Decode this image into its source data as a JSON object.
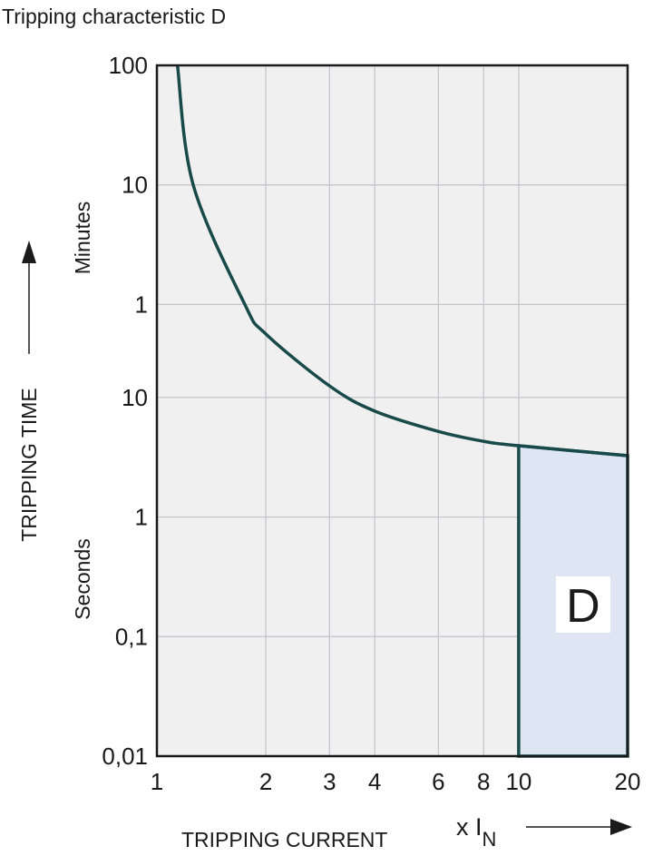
{
  "chart_data": {
    "type": "line",
    "title": "Tripping characteristic D",
    "xlabel": "TRIPPING CURRENT",
    "xunit": "x I",
    "xunit_sub": "N",
    "ylabel": "TRIPPING TIME",
    "y_section_labels": [
      "Minutes",
      "Seconds"
    ],
    "x_scale": "log",
    "y_scale": "log",
    "xlim": [
      1,
      20
    ],
    "ylim_seconds": [
      0.01,
      6000
    ],
    "grid": true,
    "x_ticks": [
      {
        "value": 1,
        "label": "1"
      },
      {
        "value": 2,
        "label": "2"
      },
      {
        "value": 3,
        "label": "3"
      },
      {
        "value": 4,
        "label": "4"
      },
      {
        "value": 6,
        "label": "6"
      },
      {
        "value": 8,
        "label": "8"
      },
      {
        "value": 10,
        "label": "10"
      },
      {
        "value": 20,
        "label": "20"
      }
    ],
    "y_ticks": [
      {
        "seconds": 6000,
        "label": "100"
      },
      {
        "seconds": 600,
        "label": "10"
      },
      {
        "seconds": 60,
        "label": "1"
      },
      {
        "seconds": 10,
        "label": "10"
      },
      {
        "seconds": 1,
        "label": "1"
      },
      {
        "seconds": 0.1,
        "label": "0,1"
      },
      {
        "seconds": 0.01,
        "label": "0,01"
      }
    ],
    "series": [
      {
        "x": [
          1.14,
          1.26,
          1.75,
          2,
          3,
          4,
          6,
          8,
          10,
          20
        ],
        "y_seconds": [
          6000,
          600,
          60,
          34,
          12.5,
          7.7,
          5.2,
          4.3,
          3.95,
          3.26
        ]
      }
    ],
    "region": {
      "label": "D",
      "x_range": [
        10,
        20
      ],
      "y_bottom_seconds": 0.01
    },
    "colors": {
      "curve": "#184a4a",
      "region_fill": "#dfe6f3",
      "plot_bg": "#f0f0f0",
      "grid": "#c6c6ca"
    }
  }
}
